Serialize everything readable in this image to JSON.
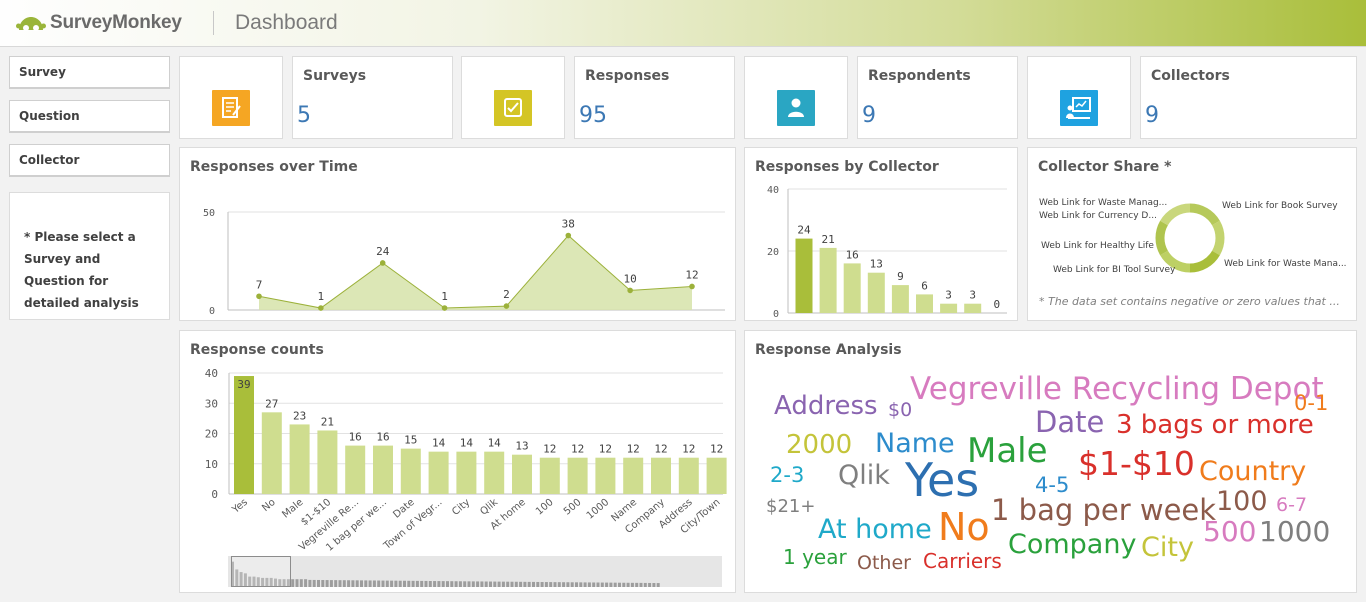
{
  "app": {
    "brand": "SurveyMonkey",
    "title": "Dashboard"
  },
  "filters": [
    {
      "label": "Survey"
    },
    {
      "label": "Question"
    },
    {
      "label": "Collector"
    }
  ],
  "note": "* Please select a Survey and Question for detailed analysis",
  "kpis": [
    {
      "label": "Surveys",
      "value": "5",
      "icon": "survey-icon",
      "color": "#f5a623"
    },
    {
      "label": "Responses",
      "value": "95",
      "icon": "response-icon",
      "color": "#d4c525"
    },
    {
      "label": "Respondents",
      "value": "9",
      "icon": "user-icon",
      "color": "#2aa6c3"
    },
    {
      "label": "Collectors",
      "value": "9",
      "icon": "presentation-icon",
      "color": "#1fa2e0"
    }
  ],
  "colors": {
    "accent": "#a9be3a",
    "bar_highlight": "#a9be3a",
    "bar": "#cfdd8f",
    "area": "#d6e3a9",
    "line": "#9cb13a"
  },
  "panels": {
    "responses_over_time": "Responses over Time",
    "responses_by_collector": "Responses by Collector",
    "collector_share": "Collector Share *",
    "response_counts": "Response counts",
    "response_analysis": "Response Analysis"
  },
  "collector_share_note": "* The data set contains negative or zero values that ...",
  "chart_data": [
    {
      "id": "responses_over_time",
      "type": "area",
      "title": "Responses over Time",
      "values": [
        7,
        1,
        24,
        1,
        2,
        38,
        10,
        12
      ],
      "ylim": [
        0,
        50
      ],
      "yticks": [
        "50",
        "0"
      ]
    },
    {
      "id": "responses_by_collector",
      "type": "bar",
      "title": "Responses by Collector",
      "values": [
        24,
        21,
        16,
        13,
        9,
        6,
        3,
        3,
        0
      ],
      "ylim": [
        0,
        40
      ],
      "yticks": [
        "40",
        "20",
        "0"
      ]
    },
    {
      "id": "collector_share",
      "type": "pie",
      "title": "Collector Share *",
      "labels": [
        "Web Link for Waste Manag...",
        "Web Link for Currency D...",
        "Web Link for Healthy Life",
        "Web Link for BI Tool Survey",
        "Web Link for Book Survey",
        "Web Link for Waste Mana..."
      ],
      "values": [
        2,
        2,
        2,
        2,
        2,
        2
      ]
    },
    {
      "id": "response_counts",
      "type": "bar",
      "title": "Response counts",
      "categories": [
        "Yes",
        "No",
        "Male",
        "$1-$10",
        "Vegreville Re...",
        "1 bag per we...",
        "Date",
        "Town of Vegr...",
        "City",
        "Qlik",
        "At home",
        "100",
        "500",
        "1000",
        "Name",
        "Company",
        "Address",
        "City/Town"
      ],
      "values": [
        39,
        27,
        23,
        21,
        16,
        16,
        15,
        14,
        14,
        14,
        13,
        12,
        12,
        12,
        12,
        12,
        12,
        12
      ],
      "ylim": [
        0,
        40
      ],
      "yticks": [
        "40",
        "30",
        "20",
        "10",
        "0"
      ]
    }
  ],
  "word_cloud": [
    {
      "text": "Vegreville Recycling Depot",
      "color": "#d77bbf"
    },
    {
      "text": "Address",
      "color": "#8a64b0"
    },
    {
      "text": "$0",
      "color": "#8a64b0"
    },
    {
      "text": "0-1",
      "color": "#f07c1c"
    },
    {
      "text": "Date",
      "color": "#8a64b0"
    },
    {
      "text": "3 bags or more",
      "color": "#d9302b"
    },
    {
      "text": "2000",
      "color": "#c4c43a"
    },
    {
      "text": "Name",
      "color": "#2d8ccc"
    },
    {
      "text": "Male",
      "color": "#2aa13c"
    },
    {
      "text": "$1-$10",
      "color": "#d9302b"
    },
    {
      "text": "2-3",
      "color": "#1fa9c9"
    },
    {
      "text": "Qlik",
      "color": "#7f7f7f"
    },
    {
      "text": "Yes",
      "color": "#2d6fb0"
    },
    {
      "text": "Country",
      "color": "#f07c1c"
    },
    {
      "text": "4-5",
      "color": "#2d8ccc"
    },
    {
      "text": "$21+",
      "color": "#7f7f7f"
    },
    {
      "text": "1 bag per week",
      "color": "#8c5a4a"
    },
    {
      "text": "100",
      "color": "#8c5a4a"
    },
    {
      "text": "6-7",
      "color": "#d77bbf"
    },
    {
      "text": "At home",
      "color": "#1fa9c9"
    },
    {
      "text": "No",
      "color": "#f07c1c"
    },
    {
      "text": "500",
      "color": "#d77bbf"
    },
    {
      "text": "1000",
      "color": "#7f7f7f"
    },
    {
      "text": "Company",
      "color": "#2aa13c"
    },
    {
      "text": "City",
      "color": "#c4c43a"
    },
    {
      "text": "1 year",
      "color": "#2aa13c"
    },
    {
      "text": "Other",
      "color": "#8c5a4a"
    },
    {
      "text": "Carriers",
      "color": "#d9302b"
    }
  ]
}
